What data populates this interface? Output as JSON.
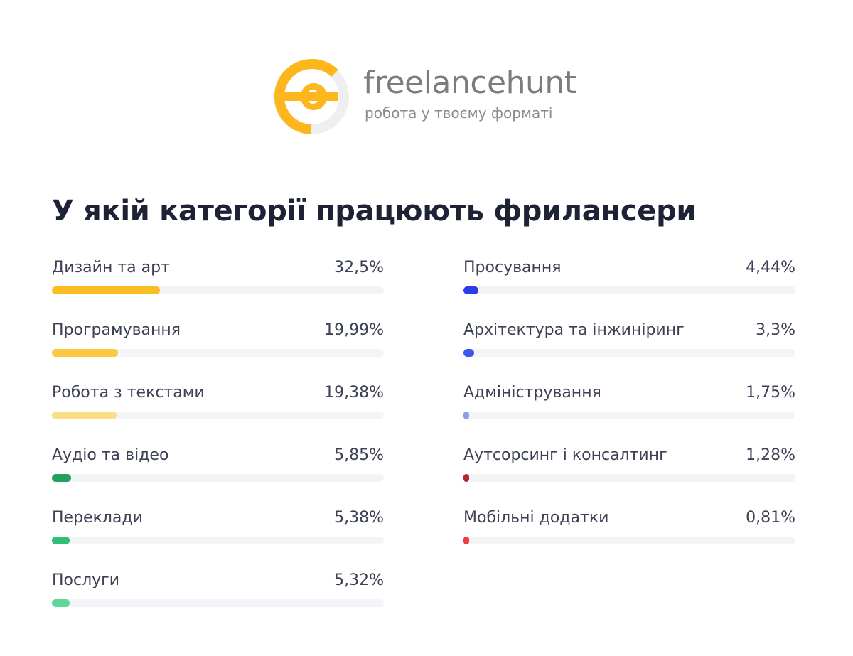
{
  "brand": {
    "name": "freelancehunt",
    "tagline": "робота у твоєму форматі",
    "logo_primary_color": "#FDB71D",
    "logo_secondary_color": "#EFEFEF",
    "text_color": "#7C7C7C"
  },
  "chart_data": {
    "type": "bar",
    "title": "У якій категорії працюють фрилансери",
    "xlim": [
      0,
      100
    ],
    "unit": "%",
    "bars": [
      {
        "label": "Дизайн та арт",
        "value": 32.5,
        "value_label": "32,5%",
        "color": "#FBBD22"
      },
      {
        "label": "Програмування",
        "value": 19.99,
        "value_label": "19,99%",
        "color": "#FBC844"
      },
      {
        "label": "Робота з текстами",
        "value": 19.38,
        "value_label": "19,38%",
        "color": "#F9DE86"
      },
      {
        "label": "Аудіо та відео",
        "value": 5.85,
        "value_label": "5,85%",
        "color": "#22A05D"
      },
      {
        "label": "Переклади",
        "value": 5.38,
        "value_label": "5,38%",
        "color": "#2FBE72"
      },
      {
        "label": "Послуги",
        "value": 5.32,
        "value_label": "5,32%",
        "color": "#5ED695"
      },
      {
        "label": "Просування",
        "value": 4.44,
        "value_label": "4,44%",
        "color": "#2B3FE6"
      },
      {
        "label": "Архітектура та інжиніринг",
        "value": 3.3,
        "value_label": "3,3%",
        "color": "#3B55EF"
      },
      {
        "label": "Адміністрування",
        "value": 1.75,
        "value_label": "1,75%",
        "color": "#8C9CF4"
      },
      {
        "label": "Аутсорсинг і консалтинг",
        "value": 1.28,
        "value_label": "1,28%",
        "color": "#B3282C"
      },
      {
        "label": "Мобільні додатки",
        "value": 0.81,
        "value_label": "0,81%",
        "color": "#EE3B3B"
      }
    ],
    "track_color": "#F3F4F8"
  }
}
